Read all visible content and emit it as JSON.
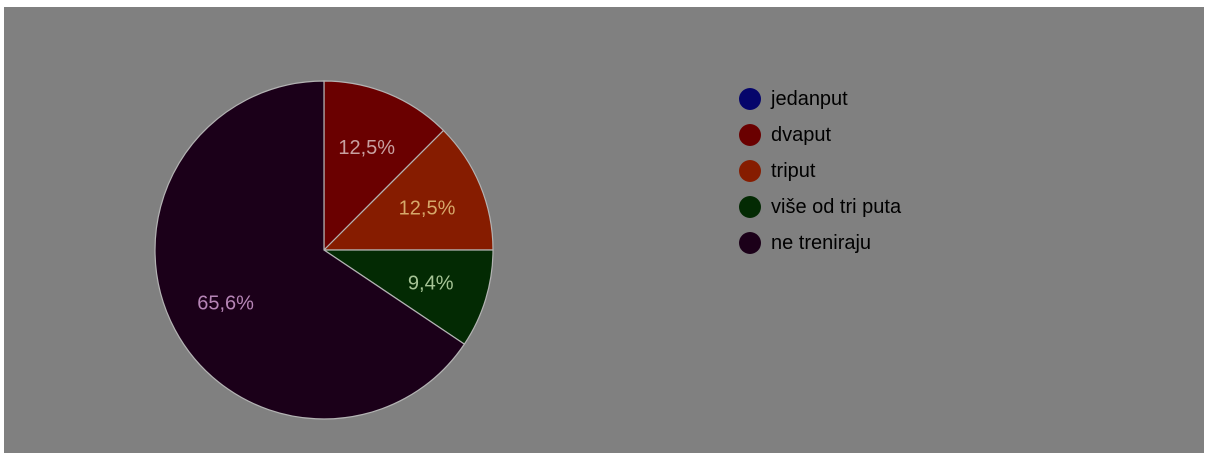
{
  "chart_data": {
    "type": "pie",
    "title": "",
    "categories": [
      "jedanput",
      "dvaput",
      "triput",
      "više od tri puta",
      "ne treniraju"
    ],
    "values": [
      0,
      12.5,
      12.5,
      9.4,
      65.6
    ],
    "value_labels": [
      "",
      "12,5%",
      "12,5%",
      "9,4%",
      "65,6%"
    ],
    "colors": [
      "#05056b",
      "#6a0000",
      "#861c00",
      "#032a03",
      "#1b0019"
    ],
    "label_colors": [
      "#c8c8c8",
      "#c8a0a0",
      "#d6a86a",
      "#a6c496",
      "#b685b6"
    ],
    "start_angle_deg": 90,
    "direction": "clockwise",
    "legend_position": "right",
    "overlay": "dimmed"
  }
}
